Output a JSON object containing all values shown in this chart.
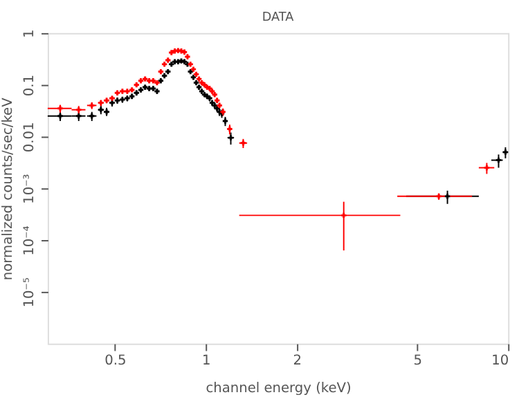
{
  "chart_data": {
    "type": "scatter",
    "title": "DATA",
    "xlabel": "channel energy (keV)",
    "ylabel": "normalized counts/sec/keV",
    "log": "xy",
    "grid": false,
    "marker": "cross",
    "xlim": [
      0.3,
      10
    ],
    "xticks": [
      0.5,
      1,
      2,
      5,
      10
    ],
    "ylim": [
      1e-06,
      1
    ],
    "yticks": [
      1,
      0.1,
      0.01,
      {
        "value": 0.001,
        "label": "10⁻³"
      },
      {
        "value": 0.0001,
        "label": "10⁻⁴"
      },
      {
        "value": 1e-05,
        "label": "10⁻⁵"
      }
    ],
    "series": [
      {
        "color": "#000000",
        "x": [
          0.33,
          0.38,
          0.42,
          0.45,
          0.47,
          0.49,
          0.51,
          0.53,
          0.55,
          0.57,
          0.59,
          0.61,
          0.63,
          0.65,
          0.67,
          0.69,
          0.71,
          0.73,
          0.75,
          0.77,
          0.79,
          0.81,
          0.83,
          0.85,
          0.87,
          0.89,
          0.91,
          0.93,
          0.95,
          0.97,
          0.99,
          1.01,
          1.03,
          1.05,
          1.07,
          1.09,
          1.11,
          1.13,
          1.16,
          1.21,
          6.3,
          9.3,
          9.8
        ],
        "values": [
          0.025,
          0.025,
          0.025,
          0.033,
          0.03,
          0.045,
          0.05,
          0.052,
          0.055,
          0.06,
          0.07,
          0.08,
          0.09,
          0.085,
          0.085,
          0.075,
          0.12,
          0.15,
          0.18,
          0.25,
          0.28,
          0.28,
          0.29,
          0.28,
          0.25,
          0.18,
          0.14,
          0.11,
          0.09,
          0.075,
          0.065,
          0.06,
          0.055,
          0.045,
          0.04,
          0.035,
          0.03,
          0.028,
          0.02,
          0.0095,
          0.0007,
          0.0035,
          0.005
        ],
        "xerrors": [
          0.03,
          0.02,
          0.015,
          0.01,
          0.01,
          0.01,
          0.01,
          0.01,
          0.01,
          0.01,
          0.01,
          0.01,
          0.01,
          0.01,
          0.01,
          0.01,
          0.01,
          0.01,
          0.01,
          0.01,
          0.01,
          0.01,
          0.01,
          0.01,
          0.01,
          0.01,
          0.01,
          0.01,
          0.01,
          0.01,
          0.01,
          0.01,
          0.01,
          0.01,
          0.01,
          0.01,
          0.01,
          0.01,
          0.02,
          0.03,
          [
            4.6,
            8
          ],
          [
            8.8,
            9.6
          ],
          [
            9.6,
            10
          ]
        ],
        "errors": [
          [
            0.02,
            0.03
          ],
          [
            0.02,
            0.03
          ],
          [
            0.02,
            0.03
          ],
          [
            0.027,
            0.04
          ],
          [
            0.025,
            0.036
          ],
          [
            0.038,
            0.052
          ],
          [
            0.043,
            0.057
          ],
          [
            0.045,
            0.059
          ],
          [
            0.048,
            0.062
          ],
          [
            0.053,
            0.067
          ],
          [
            0.062,
            0.078
          ],
          [
            0.071,
            0.089
          ],
          [
            0.08,
            0.1
          ],
          [
            0.076,
            0.094
          ],
          [
            0.076,
            0.094
          ],
          [
            0.067,
            0.083
          ],
          [
            0.11,
            0.13
          ],
          [
            0.14,
            0.16
          ],
          [
            0.17,
            0.19
          ],
          [
            0.24,
            0.26
          ],
          [
            0.27,
            0.29
          ],
          [
            0.27,
            0.29
          ],
          [
            0.28,
            0.3
          ],
          [
            0.27,
            0.29
          ],
          [
            0.24,
            0.26
          ],
          [
            0.17,
            0.19
          ],
          [
            0.13,
            0.15
          ],
          [
            0.1,
            0.12
          ],
          [
            0.08,
            0.1
          ],
          [
            0.067,
            0.083
          ],
          [
            0.058,
            0.072
          ],
          [
            0.053,
            0.067
          ],
          [
            0.048,
            0.062
          ],
          [
            0.039,
            0.051
          ],
          [
            0.034,
            0.046
          ],
          [
            0.03,
            0.04
          ],
          [
            0.025,
            0.035
          ],
          [
            0.023,
            0.033
          ],
          [
            0.016,
            0.024
          ],
          [
            0.007,
            0.012
          ],
          [
            0.0005,
            0.0009
          ],
          [
            0.0025,
            0.0045
          ],
          [
            0.0038,
            0.0062
          ]
        ]
      },
      {
        "color": "#ff0000",
        "x": [
          0.33,
          0.38,
          0.42,
          0.45,
          0.47,
          0.49,
          0.51,
          0.53,
          0.55,
          0.57,
          0.59,
          0.61,
          0.63,
          0.65,
          0.67,
          0.69,
          0.71,
          0.73,
          0.75,
          0.77,
          0.79,
          0.81,
          0.83,
          0.85,
          0.87,
          0.89,
          0.91,
          0.93,
          0.95,
          0.97,
          0.99,
          1.01,
          1.03,
          1.05,
          1.07,
          1.09,
          1.11,
          1.14,
          1.2,
          1.33,
          2.86,
          5.9,
          8.5
        ],
        "values": [
          0.035,
          0.033,
          0.04,
          0.045,
          0.05,
          0.055,
          0.07,
          0.075,
          0.075,
          0.08,
          0.1,
          0.12,
          0.13,
          0.12,
          0.12,
          0.11,
          0.18,
          0.25,
          0.3,
          0.42,
          0.45,
          0.46,
          0.45,
          0.43,
          0.35,
          0.25,
          0.2,
          0.16,
          0.13,
          0.11,
          0.1,
          0.09,
          0.085,
          0.075,
          0.065,
          0.05,
          0.04,
          0.03,
          0.014,
          0.0075,
          0.0003,
          0.0007,
          0.0025
        ],
        "xerrors": [
          0.03,
          0.02,
          0.015,
          0.01,
          0.01,
          0.01,
          0.01,
          0.01,
          0.01,
          0.01,
          0.01,
          0.01,
          0.01,
          0.01,
          0.01,
          0.01,
          0.01,
          0.01,
          0.01,
          0.01,
          0.01,
          0.01,
          0.01,
          0.01,
          0.01,
          0.01,
          0.01,
          0.01,
          0.01,
          0.01,
          0.01,
          0.01,
          0.01,
          0.01,
          0.01,
          0.01,
          0.01,
          0.01,
          0.02,
          0.04,
          [
            1.29,
            4.4
          ],
          [
            4.3,
            7.6
          ],
          [
            8,
            9
          ]
        ],
        "errors": [
          [
            0.029,
            0.041
          ],
          [
            0.027,
            0.039
          ],
          [
            0.034,
            0.046
          ],
          [
            0.039,
            0.051
          ],
          [
            0.044,
            0.056
          ],
          [
            0.049,
            0.061
          ],
          [
            0.063,
            0.077
          ],
          [
            0.068,
            0.082
          ],
          [
            0.068,
            0.082
          ],
          [
            0.073,
            0.087
          ],
          [
            0.092,
            0.108
          ],
          [
            0.11,
            0.13
          ],
          [
            0.12,
            0.14
          ],
          [
            0.11,
            0.13
          ],
          [
            0.11,
            0.13
          ],
          [
            0.1,
            0.12
          ],
          [
            0.17,
            0.19
          ],
          [
            0.24,
            0.26
          ],
          [
            0.29,
            0.31
          ],
          [
            0.41,
            0.43
          ],
          [
            0.44,
            0.46
          ],
          [
            0.45,
            0.47
          ],
          [
            0.44,
            0.46
          ],
          [
            0.42,
            0.44
          ],
          [
            0.34,
            0.36
          ],
          [
            0.24,
            0.26
          ],
          [
            0.19,
            0.21
          ],
          [
            0.15,
            0.17
          ],
          [
            0.12,
            0.14
          ],
          [
            0.1,
            0.12
          ],
          [
            0.092,
            0.108
          ],
          [
            0.082,
            0.098
          ],
          [
            0.077,
            0.093
          ],
          [
            0.068,
            0.082
          ],
          [
            0.058,
            0.072
          ],
          [
            0.044,
            0.056
          ],
          [
            0.035,
            0.045
          ],
          [
            0.025,
            0.035
          ],
          [
            0.011,
            0.017
          ],
          [
            0.006,
            0.009
          ],
          [
            6.3e-05,
            0.00055
          ],
          [
            0.0006,
            0.0008
          ],
          [
            0.0019,
            0.0031
          ]
        ]
      }
    ]
  }
}
